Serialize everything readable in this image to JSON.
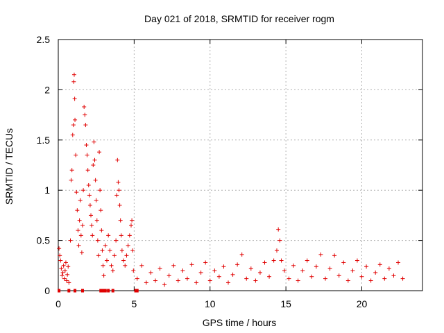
{
  "chart_data": {
    "type": "scatter",
    "title": "Day 021 of 2018, SRMTID for receiver rogm",
    "xlabel": "GPS time / hours",
    "ylabel": "SRMTID / TECUs",
    "xlim": [
      0,
      24
    ],
    "ylim": [
      0,
      2.5
    ],
    "xticks": [
      0,
      5,
      10,
      15,
      20
    ],
    "yticks": [
      0,
      0.5,
      1,
      1.5,
      2,
      2.5
    ],
    "ytick_labels": [
      "0",
      "0.5",
      "1",
      "1.5",
      "2",
      "2.5"
    ],
    "xtick_labels": [
      "0",
      "5",
      "10",
      "15",
      "20"
    ],
    "grid": true,
    "marker": "+",
    "color": "#e00000",
    "series": [
      {
        "name": "SRMTID",
        "points": [
          [
            0.05,
            0.42
          ],
          [
            0.1,
            0.35
          ],
          [
            0.15,
            0.3
          ],
          [
            0.2,
            0.22
          ],
          [
            0.25,
            0.15
          ],
          [
            0.3,
            0.18
          ],
          [
            0.35,
            0.25
          ],
          [
            0.4,
            0.12
          ],
          [
            0.45,
            0.2
          ],
          [
            0.5,
            0.28
          ],
          [
            0.55,
            0.1
          ],
          [
            0.6,
            0.16
          ],
          [
            0.65,
            0.24
          ],
          [
            0.7,
            0.08
          ],
          [
            0.8,
            0.5
          ],
          [
            0.85,
            1.1
          ],
          [
            0.9,
            1.2
          ],
          [
            0.95,
            1.55
          ],
          [
            1.0,
            1.65
          ],
          [
            1.02,
            2.08
          ],
          [
            1.05,
            2.15
          ],
          [
            1.08,
            1.91
          ],
          [
            1.1,
            1.7
          ],
          [
            1.15,
            1.35
          ],
          [
            1.2,
            0.98
          ],
          [
            1.25,
            0.8
          ],
          [
            1.3,
            0.6
          ],
          [
            1.35,
            0.45
          ],
          [
            1.4,
            0.7
          ],
          [
            1.45,
            0.9
          ],
          [
            1.5,
            0.55
          ],
          [
            1.55,
            0.38
          ],
          [
            1.6,
            0.65
          ],
          [
            1.65,
            1.0
          ],
          [
            1.7,
            1.83
          ],
          [
            1.75,
            1.75
          ],
          [
            1.8,
            1.65
          ],
          [
            1.85,
            1.45
          ],
          [
            1.9,
            1.35
          ],
          [
            1.95,
            1.2
          ],
          [
            2.0,
            1.05
          ],
          [
            2.05,
            0.95
          ],
          [
            2.1,
            0.85
          ],
          [
            2.15,
            0.75
          ],
          [
            2.2,
            0.65
          ],
          [
            2.25,
            0.55
          ],
          [
            2.3,
            1.25
          ],
          [
            2.35,
            1.48
          ],
          [
            2.4,
            1.3
          ],
          [
            2.45,
            1.1
          ],
          [
            2.5,
            0.9
          ],
          [
            2.55,
            0.7
          ],
          [
            2.6,
            0.5
          ],
          [
            2.65,
            0.35
          ],
          [
            2.7,
            1.38
          ],
          [
            2.75,
            1.0
          ],
          [
            2.8,
            0.8
          ],
          [
            2.85,
            0.6
          ],
          [
            2.9,
            0.4
          ],
          [
            2.95,
            0.25
          ],
          [
            3.0,
            0.15
          ],
          [
            3.1,
            0.45
          ],
          [
            3.2,
            0.3
          ],
          [
            3.3,
            0.55
          ],
          [
            3.4,
            0.4
          ],
          [
            3.5,
            0.25
          ],
          [
            3.6,
            0.2
          ],
          [
            3.7,
            0.35
          ],
          [
            3.8,
            0.5
          ],
          [
            3.85,
            0.95
          ],
          [
            3.9,
            1.3
          ],
          [
            3.95,
            1.08
          ],
          [
            4.0,
            1.0
          ],
          [
            4.05,
            0.85
          ],
          [
            4.1,
            0.7
          ],
          [
            4.15,
            0.55
          ],
          [
            4.2,
            0.4
          ],
          [
            4.3,
            0.3
          ],
          [
            4.4,
            0.25
          ],
          [
            4.5,
            0.35
          ],
          [
            4.6,
            0.45
          ],
          [
            4.7,
            0.55
          ],
          [
            4.8,
            0.65
          ],
          [
            4.85,
            0.7
          ],
          [
            4.9,
            0.4
          ],
          [
            4.95,
            0.2
          ],
          [
            5.2,
            0.12
          ],
          [
            5.5,
            0.25
          ],
          [
            5.8,
            0.08
          ],
          [
            6.1,
            0.18
          ],
          [
            6.4,
            0.1
          ],
          [
            6.7,
            0.22
          ],
          [
            7.0,
            0.06
          ],
          [
            7.3,
            0.15
          ],
          [
            7.6,
            0.25
          ],
          [
            7.9,
            0.1
          ],
          [
            8.2,
            0.2
          ],
          [
            8.5,
            0.12
          ],
          [
            8.8,
            0.26
          ],
          [
            9.1,
            0.08
          ],
          [
            9.4,
            0.18
          ],
          [
            9.7,
            0.28
          ],
          [
            10.0,
            0.1
          ],
          [
            10.3,
            0.2
          ],
          [
            10.6,
            0.14
          ],
          [
            10.9,
            0.24
          ],
          [
            11.2,
            0.08
          ],
          [
            11.5,
            0.16
          ],
          [
            11.8,
            0.26
          ],
          [
            12.1,
            0.36
          ],
          [
            12.4,
            0.12
          ],
          [
            12.7,
            0.22
          ],
          [
            13.0,
            0.1
          ],
          [
            13.3,
            0.18
          ],
          [
            13.6,
            0.28
          ],
          [
            13.9,
            0.14
          ],
          [
            14.2,
            0.3
          ],
          [
            14.4,
            0.4
          ],
          [
            14.5,
            0.61
          ],
          [
            14.6,
            0.5
          ],
          [
            14.7,
            0.3
          ],
          [
            14.9,
            0.2
          ],
          [
            15.2,
            0.12
          ],
          [
            15.5,
            0.25
          ],
          [
            15.8,
            0.1
          ],
          [
            16.1,
            0.2
          ],
          [
            16.4,
            0.3
          ],
          [
            16.7,
            0.14
          ],
          [
            17.0,
            0.24
          ],
          [
            17.3,
            0.36
          ],
          [
            17.6,
            0.12
          ],
          [
            17.9,
            0.22
          ],
          [
            18.2,
            0.35
          ],
          [
            18.5,
            0.15
          ],
          [
            18.8,
            0.28
          ],
          [
            19.1,
            0.1
          ],
          [
            19.4,
            0.2
          ],
          [
            19.7,
            0.3
          ],
          [
            20.0,
            0.14
          ],
          [
            20.3,
            0.24
          ],
          [
            20.6,
            0.1
          ],
          [
            20.9,
            0.18
          ],
          [
            21.2,
            0.26
          ],
          [
            21.5,
            0.12
          ],
          [
            21.8,
            0.22
          ],
          [
            22.1,
            0.15
          ],
          [
            22.4,
            0.28
          ],
          [
            22.7,
            0.12
          ]
        ]
      }
    ],
    "zero_points_x": [
      0.05,
      0.7,
      1.1,
      1.6,
      2.8,
      2.95,
      3.1,
      3.3,
      3.6,
      5.1,
      5.2
    ]
  }
}
